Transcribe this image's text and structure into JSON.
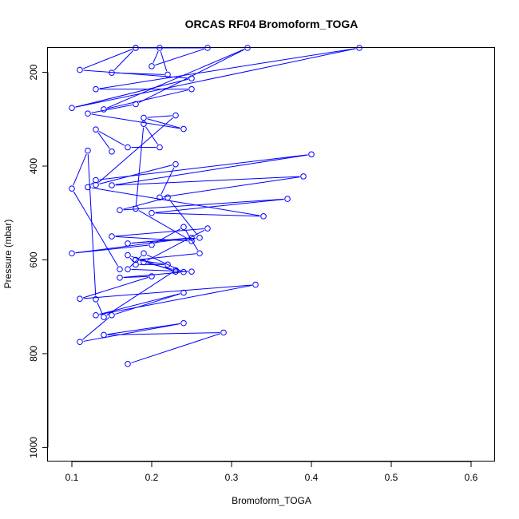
{
  "chart_data": {
    "type": "line",
    "title": "ORCAS RF04 Bromoform_TOGA",
    "xlabel": "Bromoform_TOGA",
    "ylabel": "Pressure (mbar)",
    "xlim": [
      0.07,
      0.63
    ],
    "ylim": [
      1030,
      148
    ],
    "y_reversed": true,
    "grid": false,
    "legend": "none",
    "color": "#0000ff",
    "x_ticks": [
      0.1,
      0.2,
      0.3,
      0.4,
      0.5,
      0.6
    ],
    "x_tick_labels": [
      "0.1",
      "0.2",
      "0.3",
      "0.4",
      "0.5",
      "0.6"
    ],
    "y_ticks": [
      200,
      400,
      600,
      800,
      1000
    ],
    "y_tick_labels": [
      "200",
      "400",
      "600",
      "800",
      "1000"
    ],
    "series": [
      {
        "values": [
          [
            0.17,
            822
          ],
          [
            0.29,
            755
          ],
          [
            0.14,
            760
          ],
          [
            0.24,
            735
          ],
          [
            0.11,
            775
          ],
          [
            0.15,
            718
          ],
          [
            0.24,
            670
          ],
          [
            0.13,
            718
          ],
          [
            0.33,
            653
          ],
          [
            0.11,
            683
          ],
          [
            0.2,
            635
          ],
          [
            0.16,
            638
          ],
          [
            0.24,
            626
          ],
          [
            0.19,
            586
          ],
          [
            0.17,
            620
          ],
          [
            0.25,
            625
          ],
          [
            0.23,
            625
          ],
          [
            0.17,
            590
          ],
          [
            0.18,
            610
          ],
          [
            0.22,
            610
          ],
          [
            0.18,
            600
          ],
          [
            0.26,
            586
          ],
          [
            0.24,
            530
          ],
          [
            0.2,
            568
          ],
          [
            0.1,
            586
          ],
          [
            0.25,
            553
          ],
          [
            0.17,
            565
          ],
          [
            0.26,
            553
          ],
          [
            0.22,
            467
          ],
          [
            0.16,
            494
          ],
          [
            0.37,
            470
          ],
          [
            0.2,
            500
          ],
          [
            0.34,
            507
          ],
          [
            0.12,
            445
          ],
          [
            0.13,
            430
          ],
          [
            0.4,
            375
          ],
          [
            0.15,
            441
          ],
          [
            0.39,
            422
          ],
          [
            0.21,
            467
          ],
          [
            0.23,
            396
          ],
          [
            0.13,
            440
          ],
          [
            0.23,
            292
          ],
          [
            0.19,
            297
          ],
          [
            0.24,
            321
          ],
          [
            0.12,
            288
          ],
          [
            0.18,
            268
          ],
          [
            0.32,
            148
          ],
          [
            0.14,
            279
          ],
          [
            0.25,
            236
          ],
          [
            0.13,
            236
          ],
          [
            0.46,
            148
          ],
          [
            0.1,
            276
          ],
          [
            0.25,
            213
          ],
          [
            0.11,
            195
          ],
          [
            0.18,
            148
          ],
          [
            0.15,
            201
          ],
          [
            0.22,
            205
          ],
          [
            0.21,
            148
          ],
          [
            0.2,
            187
          ],
          [
            0.27,
            148
          ],
          [
            0.18,
            148
          ]
        ]
      },
      {
        "values": [
          [
            0.15,
            369
          ],
          [
            0.13,
            322
          ],
          [
            0.17,
            360
          ],
          [
            0.21,
            360
          ],
          [
            0.19,
            310
          ],
          [
            0.18,
            491
          ],
          [
            0.25,
            560
          ],
          [
            0.15,
            550
          ],
          [
            0.27,
            533
          ],
          [
            0.19,
            605
          ],
          [
            0.23,
            622
          ],
          [
            0.14,
            722
          ],
          [
            0.13,
            684
          ],
          [
            0.12,
            367
          ],
          [
            0.1,
            448
          ],
          [
            0.16,
            620
          ]
        ]
      }
    ]
  }
}
